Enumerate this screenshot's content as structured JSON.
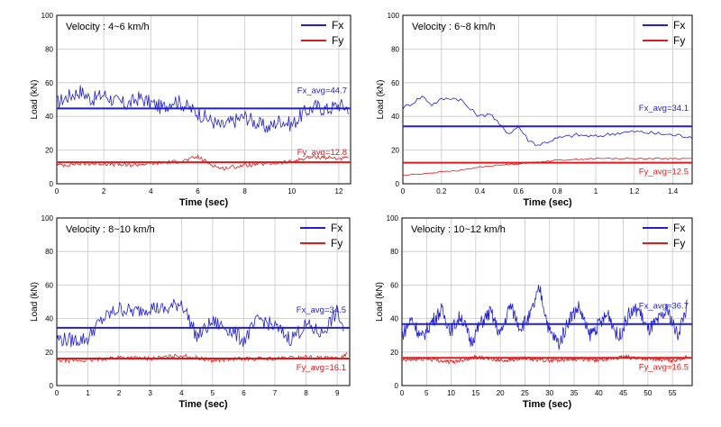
{
  "colors": {
    "fx": "#1f1fd6",
    "fy": "#e01a1a",
    "grid": "#c8c8c8",
    "axis": "#000000"
  },
  "chart_data": [
    {
      "type": "line",
      "title": "Velocity : 4~6 km/h",
      "xlabel": "Time (sec)",
      "ylabel": "Load (kN)",
      "xlim": [
        0,
        12.5
      ],
      "ylim": [
        0,
        100
      ],
      "xticks": [
        "0",
        "2",
        "4",
        "6",
        "8",
        "10",
        "12"
      ],
      "xtick_values": [
        0,
        2,
        4,
        6,
        8,
        10,
        12
      ],
      "yticks": [
        "0",
        "20",
        "40",
        "60",
        "80",
        "100"
      ],
      "ytick_values": [
        0,
        20,
        40,
        60,
        80,
        100
      ],
      "grid": true,
      "legend_position": "top-right",
      "series": [
        {
          "name": "Fx",
          "x": [
            0,
            0.5,
            1,
            1.5,
            2,
            2.5,
            3,
            3.5,
            4,
            4.5,
            5,
            5.5,
            6,
            6.5,
            7,
            7.5,
            8,
            8.5,
            9,
            9.5,
            10,
            10.5,
            11,
            11.5,
            12,
            12.4
          ],
          "y": [
            48,
            52,
            55,
            50,
            53,
            49,
            47,
            51,
            48,
            45,
            50,
            46,
            42,
            38,
            34,
            37,
            40,
            36,
            33,
            38,
            35,
            42,
            46,
            44,
            47,
            45
          ]
        },
        {
          "name": "Fy",
          "x": [
            0,
            1,
            2,
            3,
            4,
            5,
            5.5,
            6,
            6.5,
            7,
            8,
            9,
            10,
            10.5,
            11,
            12,
            12.4
          ],
          "y": [
            11,
            12,
            12,
            11,
            12,
            13,
            14,
            16,
            12,
            9,
            11,
            12,
            13,
            15,
            16,
            15,
            15
          ]
        }
      ],
      "avg_lines": [
        {
          "series": "Fx",
          "value": 44.7,
          "label": "Fx_avg=44.7"
        },
        {
          "series": "Fy",
          "value": 12.8,
          "label": "Fy_avg=12.8"
        }
      ]
    },
    {
      "type": "line",
      "title": "Velocity : 6~8 km/h",
      "xlabel": "Time (sec)",
      "ylabel": "Load (kN)",
      "xlim": [
        0,
        1.5
      ],
      "ylim": [
        0,
        100
      ],
      "xticks": [
        "0",
        "0.2",
        "0.4",
        "0.6",
        "0.8",
        "1",
        "1.2",
        "1.4"
      ],
      "xtick_values": [
        0,
        0.2,
        0.4,
        0.6,
        0.8,
        1,
        1.2,
        1.4
      ],
      "yticks": [
        "0",
        "20",
        "40",
        "60",
        "80",
        "100"
      ],
      "ytick_values": [
        0,
        20,
        40,
        60,
        80,
        100
      ],
      "grid": true,
      "legend_position": "top-right",
      "series": [
        {
          "name": "Fx",
          "x": [
            0,
            0.05,
            0.1,
            0.15,
            0.2,
            0.25,
            0.3,
            0.35,
            0.4,
            0.45,
            0.5,
            0.55,
            0.6,
            0.65,
            0.7,
            0.75,
            0.8,
            0.9,
            1.0,
            1.1,
            1.2,
            1.3,
            1.4,
            1.5
          ],
          "y": [
            45,
            48,
            52,
            47,
            50,
            51,
            50,
            44,
            40,
            42,
            35,
            30,
            34,
            26,
            23,
            25,
            27,
            29,
            28,
            30,
            31,
            30,
            29,
            28
          ]
        },
        {
          "name": "Fy",
          "x": [
            0,
            0.1,
            0.2,
            0.3,
            0.4,
            0.5,
            0.6,
            0.7,
            0.8,
            1.0,
            1.2,
            1.4,
            1.5
          ],
          "y": [
            5,
            6,
            7,
            8,
            10,
            11,
            12,
            13,
            14,
            15,
            15,
            15,
            15
          ]
        }
      ],
      "avg_lines": [
        {
          "series": "Fx",
          "value": 34.1,
          "label": "Fx_avg=34.1"
        },
        {
          "series": "Fy",
          "value": 12.5,
          "label": "Fy_avg=12.5"
        }
      ]
    },
    {
      "type": "line",
      "title": "Velocity : 8~10 km/h",
      "xlabel": "Time (sec)",
      "ylabel": "Load (kN)",
      "xlim": [
        0,
        9.4
      ],
      "ylim": [
        0,
        100
      ],
      "xticks": [
        "0",
        "1",
        "2",
        "3",
        "4",
        "5",
        "6",
        "7",
        "8",
        "9"
      ],
      "xtick_values": [
        0,
        1,
        2,
        3,
        4,
        5,
        6,
        7,
        8,
        9
      ],
      "yticks": [
        "0",
        "20",
        "40",
        "60",
        "80",
        "100"
      ],
      "ytick_values": [
        0,
        20,
        40,
        60,
        80,
        100
      ],
      "grid": true,
      "legend_position": "top-right",
      "series": [
        {
          "name": "Fx",
          "x": [
            0,
            0.5,
            1,
            1.2,
            1.5,
            2,
            2.5,
            3,
            3.5,
            4,
            4.5,
            5,
            5.5,
            6,
            6.5,
            7,
            7.5,
            8,
            8.5,
            9,
            9.2
          ],
          "y": [
            28,
            27,
            28,
            34,
            40,
            46,
            44,
            47,
            45,
            50,
            29,
            38,
            34,
            27,
            40,
            35,
            28,
            36,
            31,
            44,
            34
          ]
        },
        {
          "name": "Fy",
          "x": [
            0,
            1,
            2,
            3,
            4,
            5,
            6,
            7,
            8,
            9,
            9.3
          ],
          "y": [
            15,
            15,
            17,
            16,
            18,
            15,
            16,
            16,
            17,
            16,
            19
          ]
        }
      ],
      "avg_lines": [
        {
          "series": "Fx",
          "value": 34.5,
          "label": "Fx_avg=34.5"
        },
        {
          "series": "Fy",
          "value": 16.1,
          "label": "Fy_avg=16.1"
        }
      ]
    },
    {
      "type": "line",
      "title": "Velocity : 10~12 km/h",
      "xlabel": "Time (sec)",
      "ylabel": "Load (kN)",
      "xlim": [
        0,
        59
      ],
      "ylim": [
        0,
        100
      ],
      "xticks": [
        "0",
        "5",
        "10",
        "15",
        "20",
        "25",
        "30",
        "35",
        "40",
        "45",
        "50",
        "55"
      ],
      "xtick_values": [
        0,
        5,
        10,
        15,
        20,
        25,
        30,
        35,
        40,
        45,
        50,
        55
      ],
      "yticks": [
        "0",
        "20",
        "40",
        "60",
        "80",
        "100"
      ],
      "ytick_values": [
        0,
        20,
        40,
        60,
        80,
        100
      ],
      "grid": true,
      "legend_position": "top-right",
      "series": [
        {
          "name": "Fx",
          "x": [
            0,
            2,
            4,
            6,
            8,
            10,
            12,
            14,
            16,
            18,
            20,
            22,
            24,
            26,
            28,
            30,
            32,
            34,
            36,
            38,
            40,
            42,
            44,
            46,
            48,
            50,
            52,
            54,
            56,
            58
          ],
          "y": [
            30,
            40,
            28,
            38,
            45,
            33,
            42,
            26,
            37,
            44,
            30,
            48,
            35,
            41,
            58,
            32,
            25,
            40,
            47,
            30,
            36,
            43,
            28,
            42,
            46,
            33,
            38,
            45,
            30,
            48
          ]
        },
        {
          "name": "Fy",
          "x": [
            0,
            5,
            10,
            15,
            20,
            25,
            30,
            35,
            40,
            45,
            50,
            55,
            58
          ],
          "y": [
            15,
            16,
            14,
            17,
            15,
            16,
            15,
            16,
            15,
            17,
            16,
            15,
            17
          ]
        }
      ],
      "avg_lines": [
        {
          "series": "Fx",
          "value": 36.7,
          "label": "Fx_avg=36.7"
        },
        {
          "series": "Fy",
          "value": 16.5,
          "label": "Fy_avg=16.5"
        }
      ]
    }
  ]
}
